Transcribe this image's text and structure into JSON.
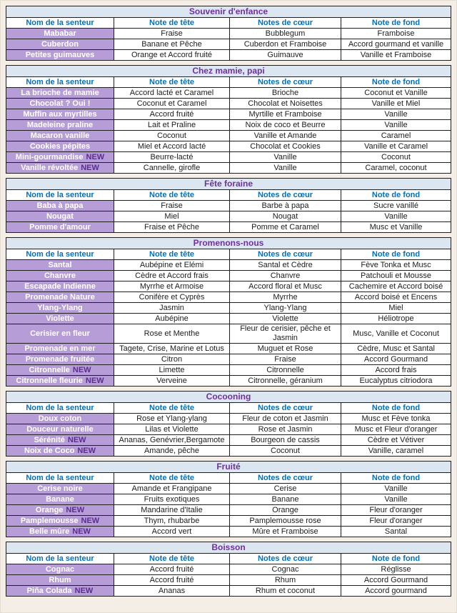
{
  "document_title": "Tableau des senteurs",
  "colors": {
    "page_background": "#f4eee6",
    "section_title_background": "#dce6f1",
    "section_title_text": "#7030a0",
    "column_header_text": "#0070c0",
    "scent_name_background": "#b79dd8",
    "scent_name_text": "#ffffff",
    "new_badge_text": "#5b2d90",
    "cell_text": "#1c1c1c",
    "border": "#1f1f1f"
  },
  "column_headers": [
    "Nom de la senteur",
    "Note de tête",
    "Notes de cœur",
    "Note de fond"
  ],
  "sections": [
    {
      "title": "Souvenir d'enfance",
      "rows": [
        {
          "name": "Mababar",
          "top": "Fraise",
          "heart": "Bubblegum",
          "base": "Framboise"
        },
        {
          "name": "Cuberdon",
          "top": "Banane et Pêche",
          "heart": "Cuberdon et Framboise",
          "base": "Accord gourmand et vanille"
        },
        {
          "name": "Petites guimauves",
          "top": "Orange et Accord fruité",
          "heart": "Guimauve",
          "base": "Vanille et Framboise"
        }
      ]
    },
    {
      "title": "Chez mamie, papi",
      "rows": [
        {
          "name": "La brioche de mamie",
          "top": "Accord lacté et Caramel",
          "heart": "Brioche",
          "base": "Coconut et Vanille"
        },
        {
          "name": "Chocolat ? Oui !",
          "top": "Coconut et Caramel",
          "heart": "Chocolat et Noisettes",
          "base": "Vanille et Miel"
        },
        {
          "name": "Muffin aux myrtilles",
          "top": "Accord fruité",
          "heart": "Myrtille et Framboise",
          "base": "Vanille"
        },
        {
          "name": "Madeleine praline",
          "top": "Lait et Praline",
          "heart": "Noix de coco et Beurre",
          "base": "Vanille"
        },
        {
          "name": "Macaron vanille",
          "top": "Coconut",
          "heart": "Vanille et Amande",
          "base": "Caramel"
        },
        {
          "name": "Cookies pépites",
          "top": "Miel et Accord lacté",
          "heart": "Chocolat et Cookies",
          "base": "Vanille et Caramel"
        },
        {
          "name": "Mini-gourmandise",
          "new_label": "NEW",
          "top": "Beurre-lacté",
          "heart": "Vanille",
          "base": "Coconut"
        },
        {
          "name": "Vanille révoltée",
          "new_label": "NEW",
          "top": "Cannelle, girofle",
          "heart": "Vanille",
          "base": "Caramel, coconut"
        }
      ]
    },
    {
      "title": "Fête foraine",
      "rows": [
        {
          "name": "Baba à papa",
          "top": "Fraise",
          "heart": "Barbe à papa",
          "base": "Sucre vanillé"
        },
        {
          "name": "Nougat",
          "top": "Miel",
          "heart": "Nougat",
          "base": "Vanille"
        },
        {
          "name": "Pomme d'amour",
          "top": "Fraise et Pêche",
          "heart": "Pomme et Caramel",
          "base": "Musc et Vanille"
        }
      ]
    },
    {
      "title": "Promenons-nous",
      "rows": [
        {
          "name": "Santal",
          "top": "Aubépine et Elémi",
          "heart": "Santal et Cèdre",
          "base": "Fève Tonka et Musc"
        },
        {
          "name": "Chanvre",
          "top": "Cèdre et Accord frais",
          "heart": "Chanvre",
          "base": "Patchouli et Mousse"
        },
        {
          "name": "Escapade Indienne",
          "top": "Myrrhe et Armoise",
          "heart": "Accord floral et Musc",
          "base": "Cachemire et Accord boisé"
        },
        {
          "name": "Promenade Nature",
          "top": "Conifère et Cyprès",
          "heart": "Myrrhe",
          "base": "Accord boisé et Encens"
        },
        {
          "name": "Ylang-Ylang",
          "top": "Jasmin",
          "heart": "Ylang-Ylang",
          "base": "Miel"
        },
        {
          "name": "Violette",
          "top": "Aubépine",
          "heart": "Violette",
          "base": "Héliotrope"
        },
        {
          "name": "Cerisier en fleur",
          "top": "Rose et Menthe",
          "heart": "Fleur de cerisier, pêche et Jasmin",
          "base": "Musc, Vanille et Coconut"
        },
        {
          "name": "Promenade en mer",
          "top": "Tagete, Crise, Marine et Lotus",
          "heart": "Muguet et Rose",
          "base": "Cèdre, Musc et Santal"
        },
        {
          "name": "Promenade fruitée",
          "top": "Citron",
          "heart": "Fraise",
          "base": "Accord Gourmand"
        },
        {
          "name": "Citronnelle",
          "new_label": "NEW",
          "top": "Limette",
          "heart": "Citronnelle",
          "base": "Accord frais"
        },
        {
          "name": "Citronnelle fleurie",
          "new_label": "NEW",
          "top": "Verveine",
          "heart": "Citronnelle, géranium",
          "base": "Eucalyptus citriodora"
        }
      ]
    },
    {
      "title": "Cocooning",
      "rows": [
        {
          "name": "Doux coton",
          "top": "Rose et Ylang-ylang",
          "heart": "Fleur de coton et Jasmin",
          "base": "Musc et Fève tonka"
        },
        {
          "name": "Douceur naturelle",
          "top": "Lilas et Violette",
          "heart": "Rose et Jasmin",
          "base": "Musc et Fleur d'oranger"
        },
        {
          "name": "Sérénité",
          "new_label": "NEW",
          "top": "Ananas, Genévrier,Bergamote",
          "heart": "Bourgeon de cassis",
          "base": "Cèdre et Vétiver"
        },
        {
          "name": "Noix de Coco",
          "new_label": "NEW",
          "top": "Amande, pêche",
          "heart": "Coconut",
          "base": "Vanille, caramel"
        }
      ]
    },
    {
      "title": "Fruité",
      "rows": [
        {
          "name": "Cerise noire",
          "top": "Amande et Frangipane",
          "heart": "Cerise",
          "base": "Vanille"
        },
        {
          "name": "Banane",
          "top": "Fruits exotiques",
          "heart": "Banane",
          "base": "Vanille"
        },
        {
          "name": "Orange",
          "new_label": "NEW",
          "top": "Mandarine d'Italie",
          "heart": "Orange",
          "base": "Fleur d'oranger"
        },
        {
          "name": "Pamplemousse",
          "new_label": "NEW",
          "top": "Thym, rhubarbe",
          "heart": "Pamplemousse rose",
          "base": "Fleur d'oranger"
        },
        {
          "name": "Belle mûre",
          "new_label": "NEW",
          "top": "Accord vert",
          "heart": "Mûre et Framboise",
          "base": "Santal"
        }
      ]
    },
    {
      "title": "Boisson",
      "rows": [
        {
          "name": "Cognac",
          "top": "Accord fruité",
          "heart": "Cognac",
          "base": "Réglisse"
        },
        {
          "name": "Rhum",
          "top": "Accord fruité",
          "heart": "Rhum",
          "base": "Accord Gourmand"
        },
        {
          "name": "Piña Colada",
          "new_label": "NEW",
          "top": "Ananas",
          "heart": "Rhum et coconut",
          "base": "Accord gourmand"
        }
      ]
    }
  ]
}
